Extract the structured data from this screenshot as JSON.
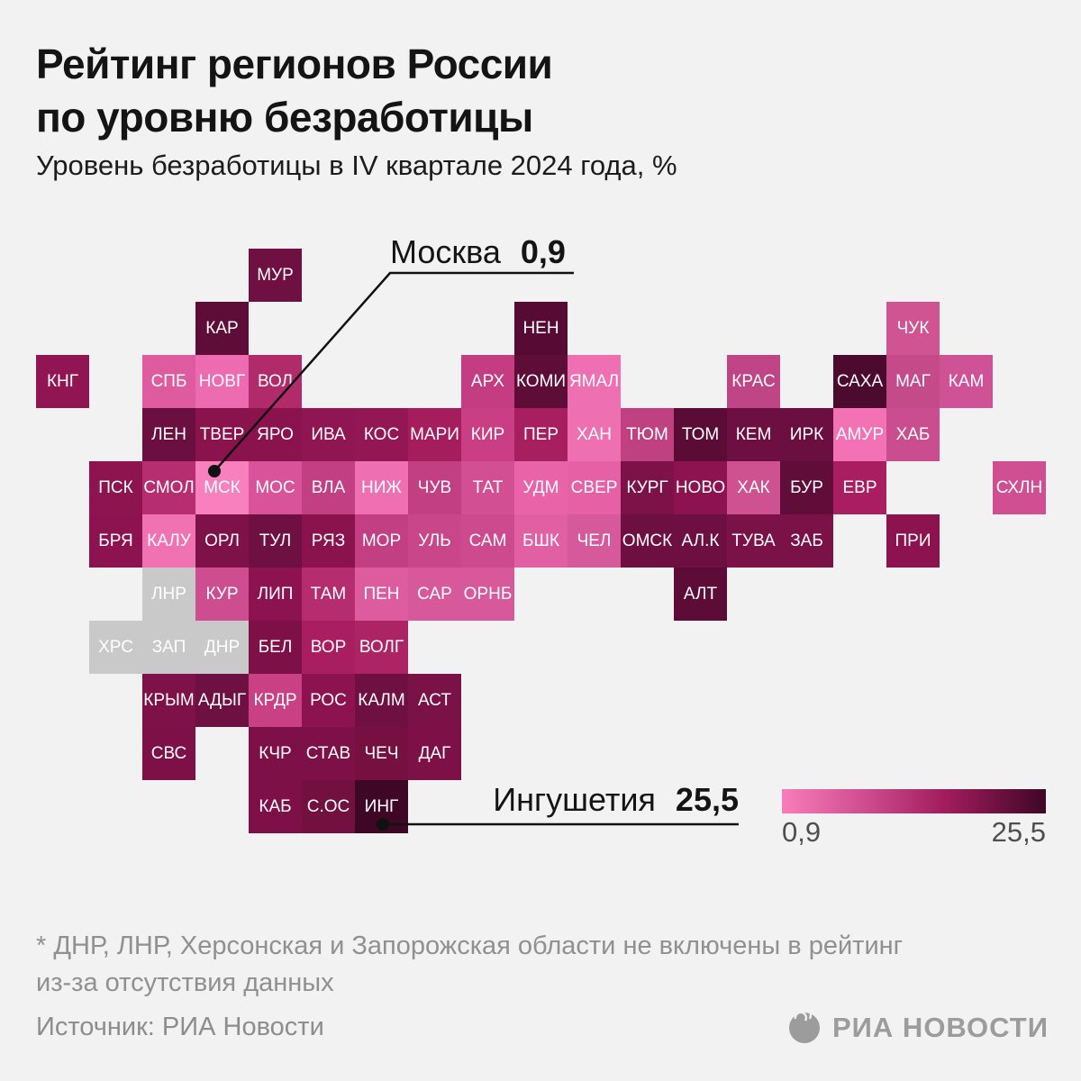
{
  "page": {
    "title_line1": "Рейтинг регионов России",
    "title_line2": "по уровню безработицы",
    "subtitle": "Уровень безработицы в IV квартале 2024 года, %",
    "background": "#f2f2f2"
  },
  "annotations": {
    "min": {
      "label": "Москва",
      "value": "0,9"
    },
    "max": {
      "label": "Ингушетия",
      "value": "25,5"
    }
  },
  "legend": {
    "min_label": "0,9",
    "max_label": "25,5",
    "gradient_stops": [
      "#f87db9",
      "#d04f92 30%",
      "#a21c5c 62%",
      "#3f0726 100%"
    ]
  },
  "footnote_line1": "* ДНР, ЛНР, Херсонская и Запорожская области не включены в рейтинг",
  "footnote_line2": "из-за отсутствия данных",
  "source": "Источник: РИА Новости",
  "brand": {
    "logo_text": "РИА НОВОСТИ",
    "logo_icon": "ria-globe-icon",
    "color": "#9c9c9c"
  },
  "chart_data": {
    "type": "heatmap",
    "subtype": "tile-grid-map",
    "title": "Рейтинг регионов России по уровню безработицы",
    "subtitle": "Уровень безработицы в IV квартале 2024 года, %",
    "value_range": [
      0.9,
      25.5
    ],
    "legend": {
      "min": "0,9",
      "max": "25,5",
      "position": "bottom-right"
    },
    "annotated_points": [
      {
        "region": "Москва",
        "code": "МСК",
        "value": 0.9
      },
      {
        "region": "Ингушетия",
        "code": "ИНГ",
        "value": 25.5
      }
    ],
    "excluded_regions": [
      "ЛНР",
      "ХРС",
      "ЗАП",
      "ДНР"
    ],
    "excluded_color": "#c9c9c9",
    "tile_size": 59,
    "regions": [
      {
        "code": "МУР",
        "col": 4,
        "row": 0,
        "color": "#6e1041"
      },
      {
        "code": "КАР",
        "col": 3,
        "row": 1,
        "color": "#5e0c38"
      },
      {
        "code": "НЕН",
        "col": 9,
        "row": 1,
        "color": "#570b34"
      },
      {
        "code": "ЧУК",
        "col": 16,
        "row": 1,
        "color": "#d05492"
      },
      {
        "code": "КНГ",
        "col": 0,
        "row": 2,
        "color": "#901552"
      },
      {
        "code": "СПБ",
        "col": 2,
        "row": 2,
        "color": "#df5b9f"
      },
      {
        "code": "НОВГ",
        "col": 3,
        "row": 2,
        "color": "#ed6bb0"
      },
      {
        "code": "ВОЛ",
        "col": 4,
        "row": 2,
        "color": "#b12a6a"
      },
      {
        "code": "АРХ",
        "col": 8,
        "row": 2,
        "color": "#c43d82"
      },
      {
        "code": "КОМИ",
        "col": 9,
        "row": 2,
        "color": "#5e0c38"
      },
      {
        "code": "ЯМАЛ",
        "col": 10,
        "row": 2,
        "color": "#ee6fb2"
      },
      {
        "code": "КРАС",
        "col": 13,
        "row": 2,
        "color": "#c04586"
      },
      {
        "code": "САХА",
        "col": 15,
        "row": 2,
        "color": "#4d0a2f"
      },
      {
        "code": "МАГ",
        "col": 16,
        "row": 2,
        "color": "#c44a8a"
      },
      {
        "code": "КАМ",
        "col": 17,
        "row": 2,
        "color": "#ce5295"
      },
      {
        "code": "ЛЕН",
        "col": 2,
        "row": 3,
        "color": "#6b0f40"
      },
      {
        "code": "ТВЕР",
        "col": 3,
        "row": 3,
        "color": "#8a134e"
      },
      {
        "code": "ЯРО",
        "col": 4,
        "row": 3,
        "color": "#8a134e"
      },
      {
        "code": "ИВА",
        "col": 5,
        "row": 3,
        "color": "#8f1652"
      },
      {
        "code": "КОС",
        "col": 6,
        "row": 3,
        "color": "#921754"
      },
      {
        "code": "МАРИ",
        "col": 7,
        "row": 3,
        "color": "#a61d5e"
      },
      {
        "code": "КИР",
        "col": 8,
        "row": 3,
        "color": "#ca3e86"
      },
      {
        "code": "ПЕР",
        "col": 9,
        "row": 3,
        "color": "#a81f60"
      },
      {
        "code": "ХАН",
        "col": 10,
        "row": 3,
        "color": "#ee6fb2"
      },
      {
        "code": "ТЮМ",
        "col": 11,
        "row": 3,
        "color": "#c04181"
      },
      {
        "code": "ТОМ",
        "col": 12,
        "row": 3,
        "color": "#5a0c36"
      },
      {
        "code": "КЕМ",
        "col": 13,
        "row": 3,
        "color": "#6e0f42"
      },
      {
        "code": "ИРК",
        "col": 14,
        "row": 3,
        "color": "#6b0f40"
      },
      {
        "code": "АМУР",
        "col": 15,
        "row": 3,
        "color": "#f272b5"
      },
      {
        "code": "ХАБ",
        "col": 16,
        "row": 3,
        "color": "#ca4d90"
      },
      {
        "code": "ПСК",
        "col": 1,
        "row": 4,
        "color": "#8e1450"
      },
      {
        "code": "СМОЛ",
        "col": 2,
        "row": 4,
        "color": "#b62e6f"
      },
      {
        "code": "МСК",
        "col": 3,
        "row": 4,
        "color": "#f980bf"
      },
      {
        "code": "МОС",
        "col": 4,
        "row": 4,
        "color": "#d8539a"
      },
      {
        "code": "ВЛА",
        "col": 5,
        "row": 4,
        "color": "#c23f83"
      },
      {
        "code": "НИЖ",
        "col": 6,
        "row": 4,
        "color": "#ee6fb2"
      },
      {
        "code": "ЧУВ",
        "col": 7,
        "row": 4,
        "color": "#c13f82"
      },
      {
        "code": "ТАТ",
        "col": 8,
        "row": 4,
        "color": "#d24f93"
      },
      {
        "code": "УДМ",
        "col": 9,
        "row": 4,
        "color": "#e863a8"
      },
      {
        "code": "СВЕР",
        "col": 10,
        "row": 4,
        "color": "#e560a5"
      },
      {
        "code": "КУРГ",
        "col": 11,
        "row": 4,
        "color": "#7d1248"
      },
      {
        "code": "НОВО",
        "col": 12,
        "row": 4,
        "color": "#8c1350"
      },
      {
        "code": "ХАК",
        "col": 13,
        "row": 4,
        "color": "#ce5190"
      },
      {
        "code": "БУР",
        "col": 14,
        "row": 4,
        "color": "#600d3a"
      },
      {
        "code": "ЕВР",
        "col": 15,
        "row": 4,
        "color": "#a81e60"
      },
      {
        "code": "СХЛН",
        "col": 18,
        "row": 4,
        "color": "#cf4f92"
      },
      {
        "code": "БРЯ",
        "col": 1,
        "row": 5,
        "color": "#8c1350"
      },
      {
        "code": "КАЛУ",
        "col": 2,
        "row": 5,
        "color": "#f172b3"
      },
      {
        "code": "ОРЛ",
        "col": 3,
        "row": 5,
        "color": "#7d1148"
      },
      {
        "code": "ТУЛ",
        "col": 4,
        "row": 5,
        "color": "#6f1042"
      },
      {
        "code": "РЯЗ",
        "col": 5,
        "row": 5,
        "color": "#8a134e"
      },
      {
        "code": "МОР",
        "col": 6,
        "row": 5,
        "color": "#c33f84"
      },
      {
        "code": "УЛЬ",
        "col": 7,
        "row": 5,
        "color": "#c9468a"
      },
      {
        "code": "САМ",
        "col": 8,
        "row": 5,
        "color": "#cc4a8d"
      },
      {
        "code": "БШК",
        "col": 9,
        "row": 5,
        "color": "#e160a4"
      },
      {
        "code": "ЧЕЛ",
        "col": 10,
        "row": 5,
        "color": "#d65a9b"
      },
      {
        "code": "ОМСК",
        "col": 11,
        "row": 5,
        "color": "#6d0f41"
      },
      {
        "code": "АЛ.К",
        "col": 12,
        "row": 5,
        "color": "#6d0f41"
      },
      {
        "code": "ТУВА",
        "col": 13,
        "row": 5,
        "color": "#7a1147"
      },
      {
        "code": "ЗАБ",
        "col": 14,
        "row": 5,
        "color": "#7a1147"
      },
      {
        "code": "ПРИ",
        "col": 16,
        "row": 5,
        "color": "#8c1350"
      },
      {
        "code": "ЛНР",
        "col": 2,
        "row": 6,
        "color": "#c9c9c9",
        "excluded": true
      },
      {
        "code": "КУР",
        "col": 3,
        "row": 6,
        "color": "#ce4d90"
      },
      {
        "code": "ЛИП",
        "col": 4,
        "row": 6,
        "color": "#8c1350"
      },
      {
        "code": "ТАМ",
        "col": 5,
        "row": 6,
        "color": "#b52d6f"
      },
      {
        "code": "ПЕН",
        "col": 6,
        "row": 6,
        "color": "#dd5b9f"
      },
      {
        "code": "САР",
        "col": 7,
        "row": 6,
        "color": "#d7589b"
      },
      {
        "code": "ОРНБ",
        "col": 8,
        "row": 6,
        "color": "#d7589b"
      },
      {
        "code": "АЛТ",
        "col": 12,
        "row": 6,
        "color": "#5c0c37"
      },
      {
        "code": "ХРС",
        "col": 1,
        "row": 7,
        "color": "#c9c9c9",
        "excluded": true
      },
      {
        "code": "ЗАП",
        "col": 2,
        "row": 7,
        "color": "#c9c9c9",
        "excluded": true
      },
      {
        "code": "ДНР",
        "col": 3,
        "row": 7,
        "color": "#c9c9c9",
        "excluded": true
      },
      {
        "code": "БЕЛ",
        "col": 4,
        "row": 7,
        "color": "#7d1147"
      },
      {
        "code": "ВОР",
        "col": 5,
        "row": 7,
        "color": "#a81e60"
      },
      {
        "code": "ВОЛГ",
        "col": 6,
        "row": 7,
        "color": "#ad2465"
      },
      {
        "code": "КРЫМ",
        "col": 2,
        "row": 8,
        "color": "#7e1248"
      },
      {
        "code": "АДЫГ",
        "col": 3,
        "row": 8,
        "color": "#6f1042"
      },
      {
        "code": "КРДР",
        "col": 4,
        "row": 8,
        "color": "#c94085"
      },
      {
        "code": "РОС",
        "col": 5,
        "row": 8,
        "color": "#8c1350"
      },
      {
        "code": "КАЛМ",
        "col": 6,
        "row": 8,
        "color": "#6f1042"
      },
      {
        "code": "АСТ",
        "col": 7,
        "row": 8,
        "color": "#7a1147"
      },
      {
        "code": "СВС",
        "col": 2,
        "row": 9,
        "color": "#7d1147"
      },
      {
        "code": "КЧР",
        "col": 4,
        "row": 9,
        "color": "#7d1147"
      },
      {
        "code": "СТАВ",
        "col": 5,
        "row": 9,
        "color": "#7d1147"
      },
      {
        "code": "ЧЕЧ",
        "col": 6,
        "row": 9,
        "color": "#751040"
      },
      {
        "code": "ДАГ",
        "col": 7,
        "row": 9,
        "color": "#7d1147"
      },
      {
        "code": "КАБ",
        "col": 4,
        "row": 10,
        "color": "#7d1147"
      },
      {
        "code": "С.ОС",
        "col": 5,
        "row": 10,
        "color": "#72103f"
      },
      {
        "code": "ИНГ",
        "col": 6,
        "row": 10,
        "color": "#3f0726"
      }
    ]
  }
}
